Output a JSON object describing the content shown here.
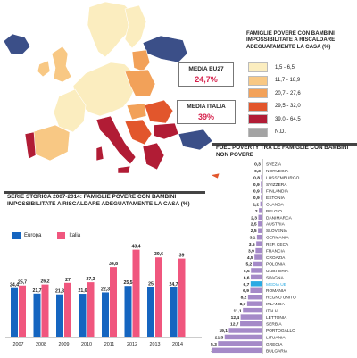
{
  "map": {
    "title": "FAMIGLIE POVERE CON BAMBINI IMPOSSIBILITATE A RISCALDARE ADEGUATAMENTE LA CASA (%)",
    "legend": [
      {
        "label": "1,5 - 6,5",
        "color": "#fbedbf"
      },
      {
        "label": "11,7 - 18,9",
        "color": "#f8c884"
      },
      {
        "label": "20,7 - 27,6",
        "color": "#f2a159"
      },
      {
        "label": "29,5 - 32,0",
        "color": "#e2562c"
      },
      {
        "label": "39,0 - 64,5",
        "color": "#b11c35"
      },
      {
        "label": "N.D.",
        "color": "#a3a3a3"
      }
    ],
    "media_eu27": {
      "label": "MEDIA EU27",
      "value": "24,7%"
    },
    "media_italia": {
      "label": "MEDIA ITALIA",
      "value": "39%"
    },
    "colors": {
      "base": "#fbedbf",
      "orange": "#f2a159",
      "lightorange": "#f8c884",
      "red": "#e2562c",
      "darkred": "#b11c35",
      "gray": "#a3a3a3",
      "outside": "#3b4f88"
    }
  },
  "chart_data": [
    {
      "type": "bar",
      "title": "SERIE STORICA 2007-2014: FAMIGLIE POVERE CON BAMBINI IMPOSSIBILITATE A RISCALDARE ADEGUATAMENTE LA CASA (%)",
      "categories": [
        "2007",
        "2008",
        "2009",
        "2010",
        "2011",
        "2012",
        "2013",
        "2014"
      ],
      "series": [
        {
          "name": "Europa",
          "color": "#1565c0",
          "values": [
            24.4,
            21.7,
            21.3,
            21.6,
            22.3,
            25.5,
            25.0,
            24.7
          ],
          "labels": [
            "24,4",
            "21,7",
            "21,3",
            "21,6",
            "22,3",
            "25,5",
            "25",
            "24,7"
          ]
        },
        {
          "name": "Italia",
          "color": "#f0567e",
          "values": [
            25.7,
            26.2,
            27.0,
            27.3,
            34.8,
            43.4,
            39.6,
            39.0
          ],
          "labels": [
            "25,7",
            "26,2",
            "27",
            "27,3",
            "34,8",
            "43,4",
            "39,6",
            "39"
          ]
        }
      ],
      "ylim": [
        0,
        45
      ],
      "grid": false,
      "legend_position": "top-left"
    },
    {
      "type": "bar",
      "orientation": "horizontal",
      "title": "FUEL POVERTY TRA LE FAMIGLIE CON BAMBINI NON POVERE",
      "categories": [
        "SVEZIA",
        "NORVEGIA",
        "LUSSEMBURGO",
        "SVIZZERA",
        "FINLANDIA",
        "ESTONIA",
        "OLANDA",
        "BELGIO",
        "DANIMARCA",
        "AUSTRIA",
        "SLOVENIA",
        "GERMANIA",
        "REP. CECA",
        "FRANCIA",
        "CROAZIA",
        "POLONIA",
        "UNGHERIA",
        "SPAGNA",
        "MEDIA UE",
        "ROMANIA",
        "REGNO UNITO",
        "IRLANDA",
        "ITALIA",
        "LETTONIA",
        "SERBIA",
        "PORTOGALLO",
        "LITUANIA",
        "GRECIA",
        "BULGARIA"
      ],
      "values": [
        0.3,
        0.3,
        0.8,
        0.9,
        0.9,
        0.9,
        1.2,
        2.0,
        2.3,
        2.5,
        2.5,
        3.1,
        3.5,
        3.9,
        4.5,
        5.2,
        6.5,
        6.6,
        6.7,
        6.9,
        8.2,
        8.7,
        11.1,
        12.4,
        12.7,
        19.1,
        21.5,
        25.3,
        28.5
      ],
      "labels": [
        "0,3",
        "0,3",
        "0,8",
        "0,9",
        "0,9",
        "0,9",
        "1,2",
        "2",
        "2,3",
        "2,5",
        "2,5",
        "3,1",
        "3,5",
        "3,9",
        "4,5",
        "5,2",
        "6,5",
        "6,6",
        "6,7",
        "6,9",
        "8,2",
        "8,7",
        "11,1",
        "12,4",
        "12,7",
        "19,1",
        "21,5",
        "25,3",
        "28,5"
      ],
      "highlight": "MEDIA UE",
      "bar_color": "#a58ac8",
      "highlight_color": "#2aaae3"
    }
  ]
}
